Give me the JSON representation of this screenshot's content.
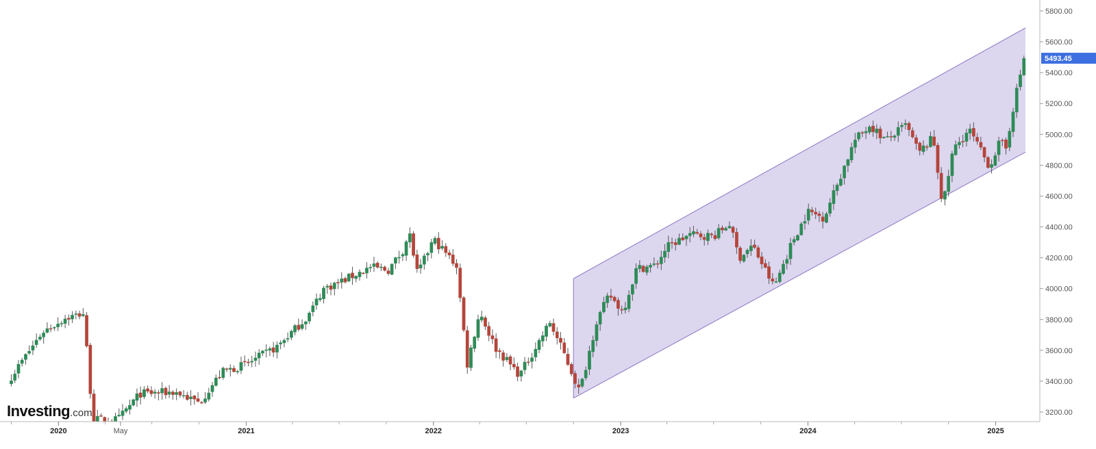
{
  "chart_data": {
    "type": "candlestick",
    "title": "",
    "xlabel": "",
    "ylabel": "",
    "ylim": [
      3150,
      5880
    ],
    "y_ticks": [
      "5800.00",
      "5600.00",
      "5400.00",
      "5200.00",
      "5000.00",
      "4800.00",
      "4600.00",
      "4400.00",
      "4200.00",
      "4000.00",
      "3800.00",
      "3600.00",
      "3400.00",
      "3200.00"
    ],
    "x_ticks": [
      {
        "label": "2020",
        "date": "2020-01-01",
        "bold": true
      },
      {
        "label": "May",
        "date": "2020-05-01",
        "bold": false
      },
      {
        "label": "2021",
        "date": "2021-01-01",
        "bold": true
      },
      {
        "label": "2022",
        "date": "2022-01-01",
        "bold": true
      },
      {
        "label": "2023",
        "date": "2023-01-01",
        "bold": true
      },
      {
        "label": "2024",
        "date": "2024-01-01",
        "bold": true
      },
      {
        "label": "2025",
        "date": "2025-01-01",
        "bold": true
      }
    ],
    "last_price": "5493.45",
    "channel": {
      "start_date": "2022-10-01",
      "end_date": "2025-02-28",
      "upper_start": 4065,
      "upper_end": 5690,
      "lower_start": 3290,
      "lower_end": 4885
    },
    "colors": {
      "up": "#2e8b57",
      "down": "#b5453a",
      "channel_fill": "#ddd6ef",
      "channel_line": "#9b87c9",
      "badge": "#3d6fe0"
    },
    "anchors": [
      [
        "2019-10-01",
        3430
      ],
      [
        "2019-12-01",
        3720
      ],
      [
        "2020-01-15",
        3810
      ],
      [
        "2020-02-19",
        3840
      ],
      [
        "2020-03-08",
        3150
      ],
      [
        "2020-04-26",
        3150
      ],
      [
        "2020-06-08",
        3320
      ],
      [
        "2020-08-16",
        3330
      ],
      [
        "2020-10-01",
        3260
      ],
      [
        "2020-11-15",
        3460
      ],
      [
        "2021-01-01",
        3510
      ],
      [
        "2021-03-01",
        3620
      ],
      [
        "2021-05-01",
        3820
      ],
      [
        "2021-06-01",
        4000
      ],
      [
        "2021-07-01",
        4040
      ],
      [
        "2021-09-01",
        4140
      ],
      [
        "2021-10-05",
        4120
      ],
      [
        "2021-11-01",
        4240
      ],
      [
        "2021-11-15",
        4360
      ],
      [
        "2021-12-01",
        4090
      ],
      [
        "2022-01-01",
        4320
      ],
      [
        "2022-02-15",
        4150
      ],
      [
        "2022-03-08",
        3510
      ],
      [
        "2022-04-01",
        3850
      ],
      [
        "2022-05-01",
        3620
      ],
      [
        "2022-06-18",
        3440
      ],
      [
        "2022-08-16",
        3780
      ],
      [
        "2022-09-15",
        3560
      ],
      [
        "2022-10-13",
        3330
      ],
      [
        "2022-11-15",
        3790
      ],
      [
        "2022-12-10",
        3960
      ],
      [
        "2023-01-05",
        3850
      ],
      [
        "2023-02-01",
        4130
      ],
      [
        "2023-03-10",
        4150
      ],
      [
        "2023-04-01",
        4270
      ],
      [
        "2023-05-15",
        4350
      ],
      [
        "2023-07-01",
        4340
      ],
      [
        "2023-08-01",
        4420
      ],
      [
        "2023-08-20",
        4200
      ],
      [
        "2023-09-15",
        4280
      ],
      [
        "2023-10-27",
        4010
      ],
      [
        "2023-12-01",
        4300
      ],
      [
        "2024-01-01",
        4500
      ],
      [
        "2024-02-01",
        4460
      ],
      [
        "2024-03-01",
        4700
      ],
      [
        "2024-04-01",
        4960
      ],
      [
        "2024-05-01",
        5060
      ],
      [
        "2024-06-01",
        4960
      ],
      [
        "2024-07-10",
        5060
      ],
      [
        "2024-08-05",
        4880
      ],
      [
        "2024-09-01",
        4980
      ],
      [
        "2024-09-20",
        4530
      ],
      [
        "2024-10-10",
        4900
      ],
      [
        "2024-11-10",
        5030
      ],
      [
        "2024-12-20",
        4790
      ],
      [
        "2025-01-10",
        4960
      ],
      [
        "2025-01-20",
        4890
      ],
      [
        "2025-02-05",
        5190
      ],
      [
        "2025-02-25",
        5493
      ]
    ]
  },
  "logo": {
    "main": "Investing",
    "suffix": ".com"
  }
}
